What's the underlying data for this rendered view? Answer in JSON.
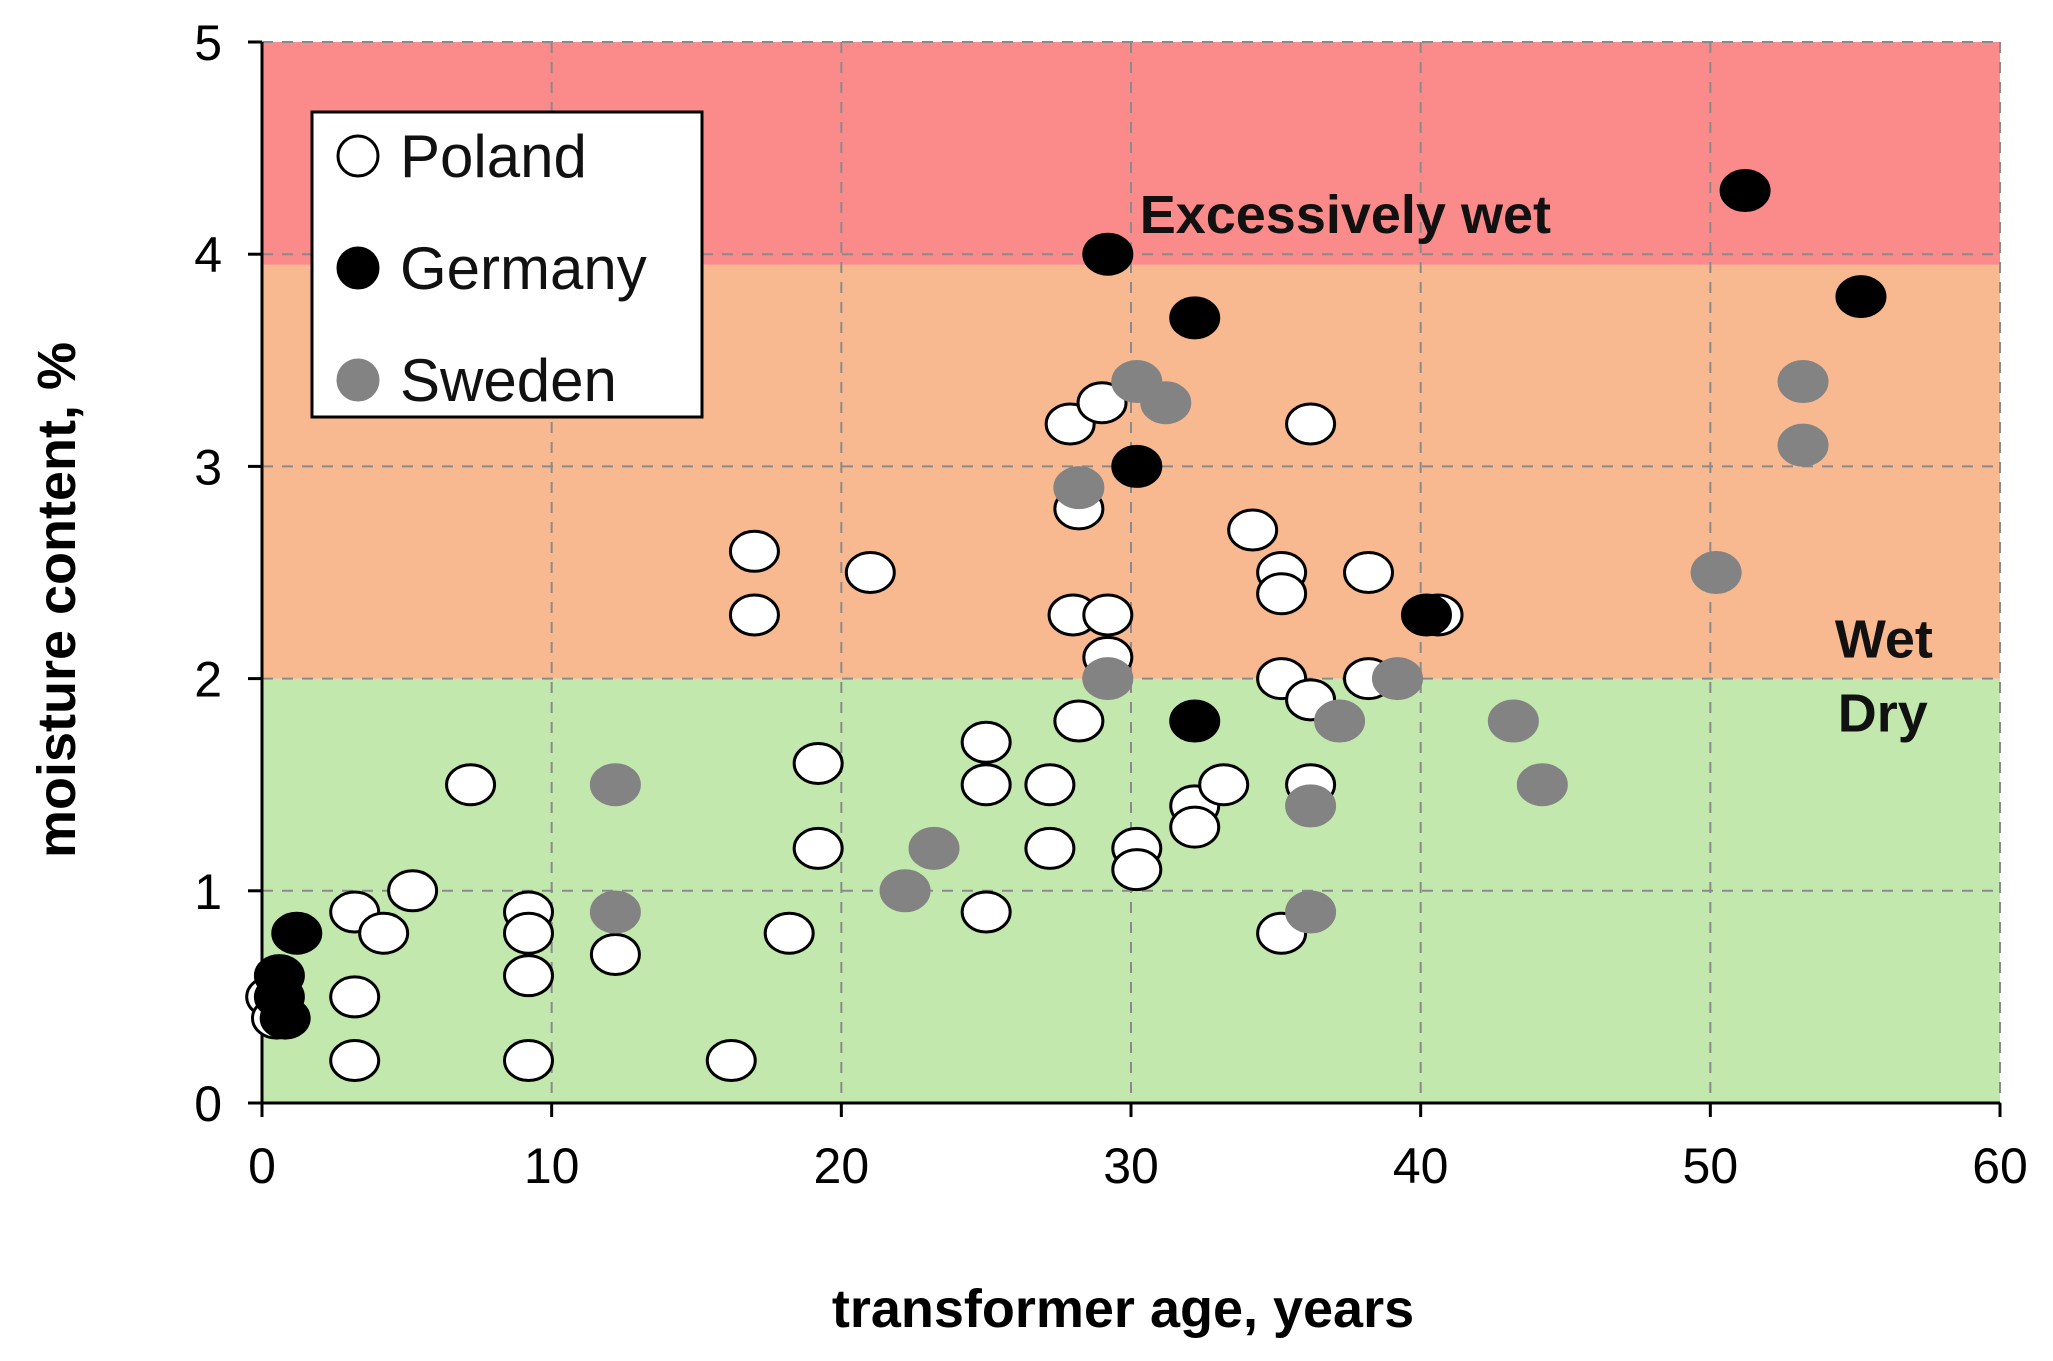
{
  "chart_data": {
    "type": "scatter",
    "title": "",
    "xlabel": "transformer age, years",
    "ylabel": "moisture content, %",
    "xlim": [
      0,
      60
    ],
    "ylim": [
      0,
      5
    ],
    "xticks": [
      "0",
      "10",
      "20",
      "30",
      "40",
      "50",
      "60"
    ],
    "yticks": [
      "0",
      "1",
      "2",
      "3",
      "4",
      "5"
    ],
    "grid": true,
    "legend_position": "top-left",
    "zones": [
      {
        "name": "Dry",
        "from": 0,
        "to": 2,
        "color": "#c2e8ad"
      },
      {
        "name": "Wet",
        "from": 2,
        "to": 3.95,
        "color": "#f9b990"
      },
      {
        "name": "Excessively wet",
        "from": 3.95,
        "to": 5,
        "color": "#fb8a8a"
      }
    ],
    "annotations": [
      {
        "text": "Excessively wet",
        "x": 30.3,
        "y": 4.1
      },
      {
        "text": "Wet",
        "x": 54.3,
        "y": 2.1
      },
      {
        "text": "Dry",
        "x": 54.4,
        "y": 1.75
      }
    ],
    "series": [
      {
        "name": "Poland",
        "fill": "#ffffff",
        "stroke": "#000000",
        "points": [
          [
            0.3,
            0.5
          ],
          [
            0.5,
            0.4
          ],
          [
            3.2,
            0.9
          ],
          [
            3.2,
            0.5
          ],
          [
            3.2,
            0.2
          ],
          [
            4.2,
            0.8
          ],
          [
            5.2,
            1.0
          ],
          [
            7.2,
            1.5
          ],
          [
            9.2,
            0.9
          ],
          [
            9.2,
            0.8
          ],
          [
            9.2,
            0.6
          ],
          [
            9.2,
            0.2
          ],
          [
            12.2,
            0.7
          ],
          [
            16.2,
            0.2
          ],
          [
            17.0,
            2.6
          ],
          [
            17.0,
            2.3
          ],
          [
            18.2,
            0.8
          ],
          [
            19.2,
            1.6
          ],
          [
            19.2,
            1.2
          ],
          [
            21.0,
            2.5
          ],
          [
            25.0,
            1.7
          ],
          [
            25.0,
            1.5
          ],
          [
            25.0,
            0.9
          ],
          [
            27.2,
            1.5
          ],
          [
            27.2,
            1.2
          ],
          [
            27.9,
            3.2
          ],
          [
            28.2,
            2.8
          ],
          [
            28.0,
            2.3
          ],
          [
            28.2,
            1.8
          ],
          [
            29.0,
            3.3
          ],
          [
            29.2,
            2.3
          ],
          [
            29.2,
            2.1
          ],
          [
            30.2,
            1.2
          ],
          [
            30.2,
            1.1
          ],
          [
            32.2,
            1.4
          ],
          [
            32.2,
            1.3
          ],
          [
            33.2,
            1.5
          ],
          [
            34.2,
            2.7
          ],
          [
            35.2,
            2.5
          ],
          [
            35.2,
            2.4
          ],
          [
            35.2,
            2.0
          ],
          [
            35.2,
            0.8
          ],
          [
            36.2,
            3.2
          ],
          [
            36.2,
            1.9
          ],
          [
            36.2,
            1.5
          ],
          [
            38.2,
            2.5
          ],
          [
            38.2,
            2.0
          ],
          [
            40.6,
            2.3
          ]
        ]
      },
      {
        "name": "Germany",
        "fill": "#000000",
        "stroke": "#000000",
        "points": [
          [
            0.6,
            0.6
          ],
          [
            0.6,
            0.5
          ],
          [
            0.8,
            0.4
          ],
          [
            1.2,
            0.8
          ],
          [
            29.2,
            4.0
          ],
          [
            30.2,
            3.0
          ],
          [
            32.2,
            3.7
          ],
          [
            32.2,
            1.8
          ],
          [
            40.2,
            2.3
          ],
          [
            51.2,
            4.3
          ],
          [
            55.2,
            3.8
          ]
        ]
      },
      {
        "name": "Sweden",
        "fill": "#838383",
        "stroke": "#838383",
        "points": [
          [
            12.2,
            1.5
          ],
          [
            12.2,
            0.9
          ],
          [
            22.2,
            1.0
          ],
          [
            23.2,
            1.2
          ],
          [
            28.2,
            2.9
          ],
          [
            29.2,
            2.0
          ],
          [
            30.2,
            3.4
          ],
          [
            31.2,
            3.3
          ],
          [
            36.2,
            1.4
          ],
          [
            36.2,
            0.9
          ],
          [
            37.2,
            1.8
          ],
          [
            39.2,
            2.0
          ],
          [
            43.2,
            1.8
          ],
          [
            44.2,
            1.5
          ],
          [
            50.2,
            2.5
          ],
          [
            53.2,
            3.4
          ],
          [
            53.2,
            3.1
          ]
        ]
      }
    ]
  }
}
